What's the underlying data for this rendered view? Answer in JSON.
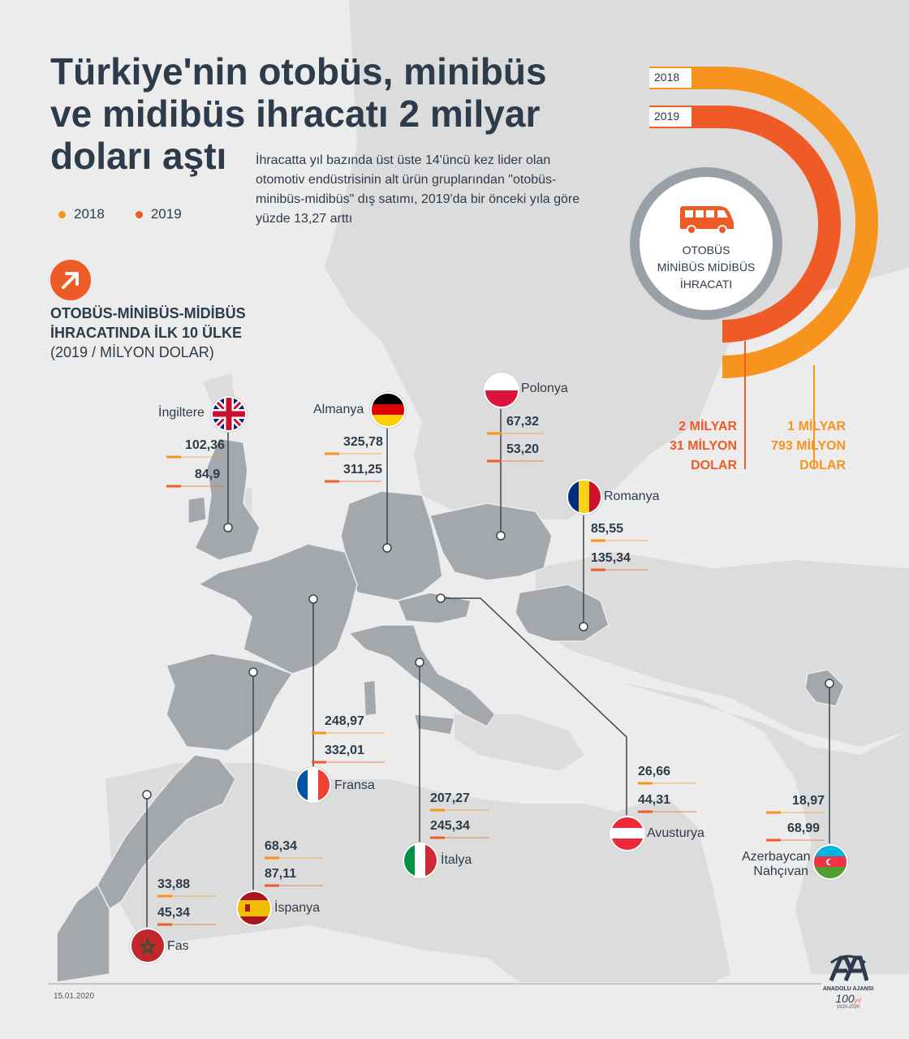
{
  "header": {
    "title_line1": "Türkiye'nin otobüs, minibüs",
    "title_line2": "ve midibüs ihracatı 2 milyar",
    "title_line3": "doları aştı",
    "lede": "İhracatta yıl bazında üst üste 14'üncü kez lider olan otomotiv endüstrisinin alt ürün gruplarından \"otobüs-minibüs-midibüs\" dış satımı, 2019'da bir önceki yıla göre yüzde 13,27 arttı"
  },
  "legend": {
    "y2018": "2018",
    "y2019": "2019"
  },
  "colors": {
    "y2018": "#f7941d",
    "y2019": "#ef5b26",
    "land": "#a4a8ad",
    "dark": "#2e3b4a",
    "ring": "#9aa0a8"
  },
  "section": {
    "line1": "OTOBÜS-MİNİBÜS-MİDİBÜS",
    "line2": "İHRACATINDA İLK 10 ÜLKE",
    "unit": "(2019 / MİLYON DOLAR)"
  },
  "totals": {
    "center_line1": "OTOBÜS",
    "center_line2": "MİNİBÜS MİDİBÜS",
    "center_line3": "İHRACATI",
    "tab_2018": "2018",
    "tab_2019": "2019",
    "total_2019_line1": "2 MİLYAR",
    "total_2019_line2": "31 MİLYON",
    "total_2019_line3": "DOLAR",
    "total_2018_line1": "1 MİLYAR",
    "total_2018_line2": "793 MİLYON",
    "total_2018_line3": "DOLAR",
    "icon": "bus-icon"
  },
  "countries": [
    {
      "id": "ingiltere",
      "name": "İngiltere",
      "v2018": "102,36",
      "v2019": "84,9",
      "n2018": 102.36,
      "n2019": 84.9
    },
    {
      "id": "almanya",
      "name": "Almanya",
      "v2018": "325,78",
      "v2019": "311,25",
      "n2018": 325.78,
      "n2019": 311.25
    },
    {
      "id": "polonya",
      "name": "Polonya",
      "v2018": "67,32",
      "v2019": "53,20",
      "n2018": 67.32,
      "n2019": 53.2
    },
    {
      "id": "romanya",
      "name": "Romanya",
      "v2018": "85,55",
      "v2019": "135,34",
      "n2018": 85.55,
      "n2019": 135.34
    },
    {
      "id": "fransa",
      "name": "Fransa",
      "v2018": "248,97",
      "v2019": "332,01",
      "n2018": 248.97,
      "n2019": 332.01
    },
    {
      "id": "italya",
      "name": "İtalya",
      "v2018": "207,27",
      "v2019": "245,34",
      "n2018": 207.27,
      "n2019": 245.34
    },
    {
      "id": "avusturya",
      "name": "Avusturya",
      "v2018": "26,66",
      "v2019": "44,31",
      "n2018": 26.66,
      "n2019": 44.31
    },
    {
      "id": "azerbaycan",
      "name_line1": "Azerbaycan",
      "name_line2": "Nahçıvan",
      "v2018": "18,97",
      "v2019": "68,99",
      "n2018": 18.97,
      "n2019": 68.99
    },
    {
      "id": "ispanya",
      "name": "İspanya",
      "v2018": "68,34",
      "v2019": "87,11",
      "n2018": 68.34,
      "n2019": 87.11
    },
    {
      "id": "fas",
      "name": "Fas",
      "v2018": "33,88",
      "v2019": "45,34",
      "n2018": 33.88,
      "n2019": 45.34
    }
  ],
  "footer": {
    "date": "15.01.2020",
    "agency": "ANADOLU AJANSI",
    "logo": "AA",
    "anniversary": "100",
    "anniversary_suffix": "yıl",
    "years": "1920-2020"
  }
}
